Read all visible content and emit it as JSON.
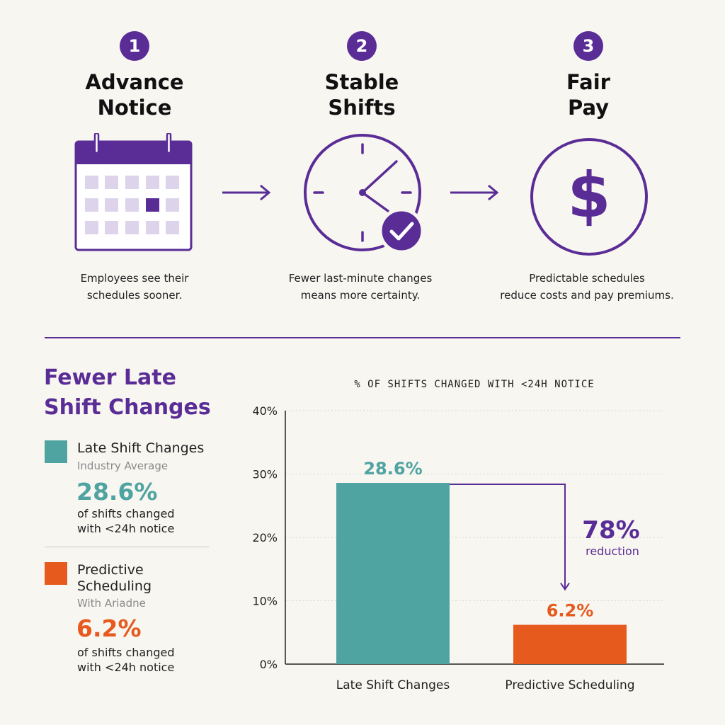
{
  "colors": {
    "accent": "#5a2d96",
    "teal": "#4fa3a0",
    "orange": "#e65a1e",
    "background": "#f8f6f1"
  },
  "steps": [
    {
      "number": "1",
      "title_line1": "Advance",
      "title_line2": "Notice",
      "icon": "calendar-icon",
      "description_line1": "Employees see their",
      "description_line2": "schedules sooner."
    },
    {
      "number": "2",
      "title_line1": "Stable",
      "title_line2": "Shifts",
      "icon": "clock-check-icon",
      "description_line1": "Fewer last-minute changes",
      "description_line2": "means more certainty."
    },
    {
      "number": "3",
      "title_line1": "Fair",
      "title_line2": "Pay",
      "icon": "dollar-circle-icon",
      "description_line1": "Predictable schedules",
      "description_line2": "reduce costs and pay premiums."
    }
  ],
  "legend": {
    "title_line1": "Fewer Late",
    "title_line2": "Shift Changes",
    "items": [
      {
        "name_line1": "Late Shift Changes",
        "name_line2": "",
        "sub": "Industry Average",
        "value": "28.6%",
        "desc_line1": "of shifts changed",
        "desc_line2": "with <24h notice"
      },
      {
        "name_line1": "Predictive",
        "name_line2": "Scheduling",
        "sub": "With Ariadne",
        "value": "6.2%",
        "desc_line1": "of shifts changed",
        "desc_line2": "with <24h notice"
      }
    ]
  },
  "chart_data": {
    "type": "bar",
    "title": "% OF SHIFTS CHANGED WITH <24H NOTICE",
    "categories": [
      "Late Shift Changes",
      "Predictive Scheduling"
    ],
    "values": [
      28.6,
      6.2
    ],
    "value_labels": [
      "28.6%",
      "6.2%"
    ],
    "colors": [
      "#4fa3a0",
      "#e65a1e"
    ],
    "ylim": [
      0,
      40
    ],
    "yticks": [
      0,
      10,
      20,
      30,
      40
    ],
    "ytick_labels": [
      "0%",
      "10%",
      "20%",
      "30%",
      "40%"
    ],
    "grid": true,
    "annotation": {
      "value": "78%",
      "label": "reduction"
    }
  }
}
